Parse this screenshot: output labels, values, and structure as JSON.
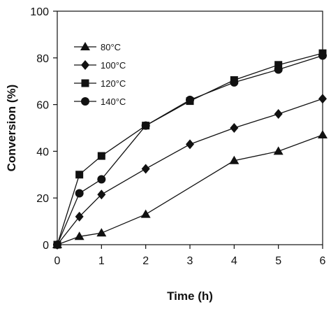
{
  "chart_data": {
    "type": "line",
    "xlabel": "Time (h)",
    "ylabel": "Conversion (%)",
    "xlim": [
      0,
      6
    ],
    "ylim": [
      0,
      100
    ],
    "xticks": [
      0,
      1,
      2,
      3,
      4,
      5,
      6
    ],
    "yticks": [
      0,
      20,
      40,
      60,
      80,
      100
    ],
    "legend_position": "top-left",
    "grid": false,
    "series": [
      {
        "name": "80°C",
        "marker": "triangle",
        "x": [
          0,
          0.5,
          1,
          2,
          4,
          5,
          6
        ],
        "y": [
          0,
          3.5,
          5,
          13,
          36,
          40,
          47
        ]
      },
      {
        "name": "100°C",
        "marker": "diamond",
        "x": [
          0,
          0.5,
          1,
          2,
          3,
          4,
          5,
          6
        ],
        "y": [
          0,
          12,
          21.5,
          32.5,
          43,
          50,
          56,
          62.5
        ]
      },
      {
        "name": "120°C",
        "marker": "square",
        "x": [
          0,
          0.5,
          1,
          2,
          3,
          4,
          5,
          6
        ],
        "y": [
          0,
          30,
          38,
          51,
          61.5,
          70.5,
          77,
          82
        ]
      },
      {
        "name": "140°C",
        "marker": "circle",
        "x": [
          0,
          0.5,
          1,
          2,
          3,
          4,
          5,
          6
        ],
        "y": [
          0,
          22,
          28,
          51,
          62,
          69.5,
          75,
          81
        ]
      }
    ]
  }
}
